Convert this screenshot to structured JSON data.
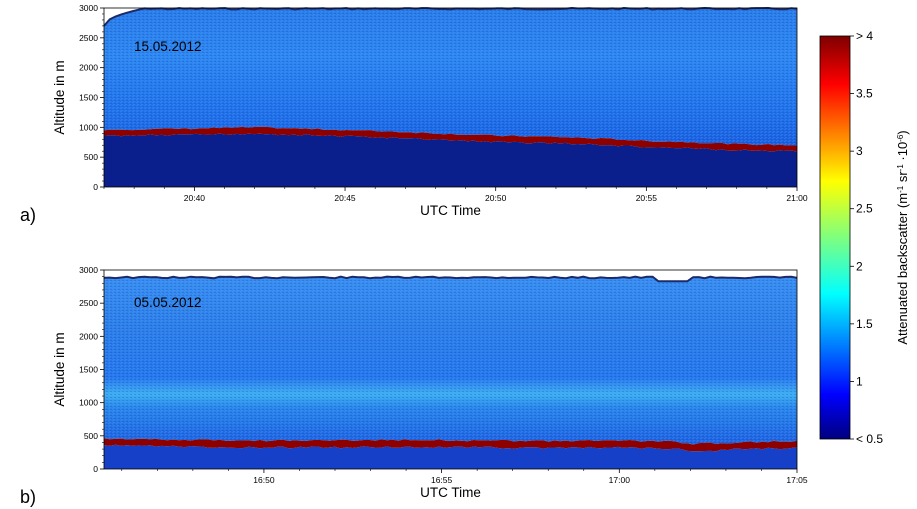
{
  "chart_data": [
    {
      "type": "heatmap",
      "panel_label": "a)",
      "annotation": "15.05.2012",
      "xlabel": "UTC Time",
      "ylabel": "Altitude in m",
      "x_tick_labels": [
        "20:40",
        "20:45",
        "20:50",
        "20:55",
        "21:00"
      ],
      "x_tick_minutes": [
        40,
        45,
        50,
        55,
        60
      ],
      "x_range_minutes": [
        37,
        60
      ],
      "y_ticks": [
        0,
        500,
        1000,
        1500,
        2000,
        2500,
        3000
      ],
      "ylim": [
        0,
        3000
      ],
      "boundary_layer_top_m": {
        "minutes": [
          37,
          40,
          42,
          44,
          46,
          48,
          50,
          52,
          54,
          55,
          56,
          58,
          60
        ],
        "values": [
          960,
          980,
          1000,
          970,
          940,
          900,
          860,
          840,
          800,
          770,
          760,
          720,
          700
        ]
      },
      "signal_top_m": 3000
    },
    {
      "type": "heatmap",
      "panel_label": "b)",
      "annotation": "05.05.2012",
      "xlabel": "UTC Time",
      "ylabel": "Altitude in m",
      "x_tick_labels": [
        "16:50",
        "16:55",
        "17:00",
        "17:05"
      ],
      "x_tick_minutes": [
        50,
        55,
        60,
        65
      ],
      "x_range_minutes": [
        45.5,
        65
      ],
      "y_ticks": [
        0,
        500,
        1000,
        1500,
        2000,
        2500,
        3000
      ],
      "ylim": [
        0,
        3000
      ],
      "boundary_layer_top_m": {
        "minutes": [
          45.5,
          48,
          50,
          52,
          54,
          56,
          58,
          60,
          61.5,
          62,
          63,
          64,
          65
        ],
        "values": [
          460,
          440,
          430,
          430,
          440,
          430,
          420,
          430,
          410,
          380,
          390,
          410,
          420
        ]
      },
      "signal_top_m": 2900
    }
  ],
  "colorbar": {
    "label_main": "Attenuated backscatter (m",
    "label_sup1": "-1",
    "label_mid": " sr",
    "label_sup2": "-1",
    "label_mid2": " ·10",
    "label_sup3": "-6",
    "label_end": ")",
    "ticks": [
      "< 0.5",
      "1",
      "1.5",
      "2",
      "2.5",
      "3",
      "3.5",
      "> 4"
    ],
    "range": [
      0.5,
      4
    ]
  }
}
